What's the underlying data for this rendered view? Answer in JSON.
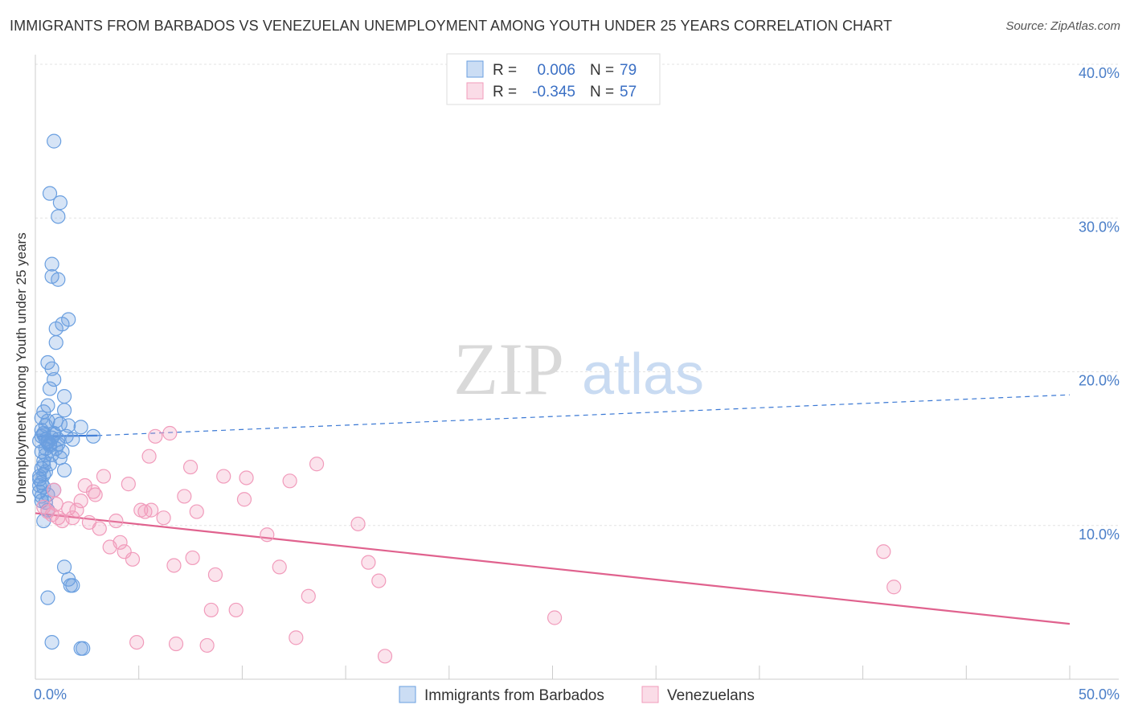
{
  "title": "IMMIGRANTS FROM BARBADOS VS VENEZUELAN UNEMPLOYMENT AMONG YOUTH UNDER 25 YEARS CORRELATION CHART",
  "source": "Source: ZipAtlas.com",
  "watermark": {
    "zip": "ZIP",
    "atlas": "atlas"
  },
  "chart_data": {
    "type": "scatter",
    "ylabel": "Unemployment Among Youth under 25 years",
    "xlim": [
      0,
      50
    ],
    "ylim": [
      0,
      40
    ],
    "x_tick_labels": [
      {
        "value": 0,
        "label": "0.0%"
      },
      {
        "value": 50,
        "label": "50.0%"
      }
    ],
    "y_ticks": [
      {
        "value": 10,
        "label": "10.0%"
      },
      {
        "value": 20,
        "label": "20.0%"
      },
      {
        "value": 30,
        "label": "30.0%"
      },
      {
        "value": 40,
        "label": "40.0%"
      }
    ],
    "legend": [
      {
        "r_label": "R =",
        "r_value": "0.006",
        "n_label": "N =",
        "n_value": "79"
      },
      {
        "r_label": "R =",
        "r_value": "-0.345",
        "n_label": "N =",
        "n_value": "57"
      }
    ],
    "series": [
      {
        "name": "Immigrants from Barbados",
        "color": "#6a9fe0",
        "line_color": "#3a78d4",
        "trend": {
          "solid": [
            [
              0.1,
              15.8
            ],
            [
              3.0,
              15.85
            ]
          ],
          "dashed": [
            [
              3.0,
              15.85
            ],
            [
              50,
              18.5
            ]
          ]
        },
        "points": [
          [
            0.2,
            15.5
          ],
          [
            0.3,
            15.8
          ],
          [
            0.4,
            16.0
          ],
          [
            0.5,
            15.6
          ],
          [
            0.6,
            15.4
          ],
          [
            0.3,
            16.2
          ],
          [
            0.4,
            15.9
          ],
          [
            0.7,
            15.3
          ],
          [
            0.8,
            15.7
          ],
          [
            0.5,
            16.5
          ],
          [
            0.3,
            17.0
          ],
          [
            0.6,
            16.8
          ],
          [
            0.4,
            17.4
          ],
          [
            0.6,
            17.8
          ],
          [
            0.7,
            18.9
          ],
          [
            0.9,
            19.5
          ],
          [
            0.8,
            20.2
          ],
          [
            0.6,
            20.6
          ],
          [
            0.3,
            14.8
          ],
          [
            0.5,
            14.6
          ],
          [
            0.4,
            14.2
          ],
          [
            0.7,
            14.0
          ],
          [
            0.3,
            13.7
          ],
          [
            0.5,
            13.5
          ],
          [
            0.2,
            13.2
          ],
          [
            0.3,
            12.8
          ],
          [
            0.4,
            12.5
          ],
          [
            0.2,
            12.2
          ],
          [
            0.3,
            11.9
          ],
          [
            0.5,
            11.5
          ],
          [
            0.6,
            11.0
          ],
          [
            0.4,
            10.3
          ],
          [
            0.2,
            13.0
          ],
          [
            0.4,
            13.3
          ],
          [
            0.9,
            12.3
          ],
          [
            1.0,
            15.0
          ],
          [
            1.1,
            15.6
          ],
          [
            1.2,
            14.4
          ],
          [
            1.3,
            14.8
          ],
          [
            1.4,
            13.6
          ],
          [
            1.5,
            15.8
          ],
          [
            1.6,
            16.5
          ],
          [
            2.2,
            16.4
          ],
          [
            2.8,
            15.8
          ],
          [
            1.4,
            17.5
          ],
          [
            1.4,
            18.4
          ],
          [
            1.0,
            21.9
          ],
          [
            1.0,
            22.8
          ],
          [
            1.3,
            23.1
          ],
          [
            1.6,
            23.4
          ],
          [
            0.8,
            26.2
          ],
          [
            1.1,
            26.0
          ],
          [
            0.8,
            27.0
          ],
          [
            1.1,
            30.1
          ],
          [
            1.2,
            31.0
          ],
          [
            0.7,
            31.6
          ],
          [
            0.9,
            35.0
          ],
          [
            0.9,
            16.0
          ],
          [
            1.8,
            15.6
          ],
          [
            1.4,
            7.3
          ],
          [
            1.6,
            6.5
          ],
          [
            1.7,
            6.1
          ],
          [
            1.8,
            6.1
          ],
          [
            0.6,
            5.3
          ],
          [
            0.8,
            2.4
          ],
          [
            2.2,
            2.0
          ],
          [
            2.3,
            2.0
          ],
          [
            0.7,
            15.2
          ],
          [
            1.2,
            16.6
          ],
          [
            1.0,
            16.8
          ],
          [
            0.5,
            15.0
          ],
          [
            0.6,
            12.0
          ],
          [
            0.3,
            11.6
          ],
          [
            0.8,
            14.6
          ],
          [
            0.6,
            15.5
          ],
          [
            0.4,
            13.9
          ],
          [
            0.2,
            12.6
          ],
          [
            1.1,
            15.3
          ],
          [
            0.9,
            15.9
          ]
        ]
      },
      {
        "name": "Venezuelans",
        "color": "#f19bbb",
        "line_color": "#e0628e",
        "trend": {
          "solid": [
            [
              0,
              10.8
            ],
            [
              50,
              3.6
            ]
          ],
          "dashed": []
        },
        "points": [
          [
            0.4,
            11.2
          ],
          [
            0.6,
            10.9
          ],
          [
            0.8,
            10.7
          ],
          [
            1.0,
            11.4
          ],
          [
            1.3,
            10.3
          ],
          [
            1.6,
            11.1
          ],
          [
            1.8,
            10.5
          ],
          [
            2.0,
            11.0
          ],
          [
            2.2,
            11.6
          ],
          [
            2.4,
            12.6
          ],
          [
            2.6,
            10.2
          ],
          [
            2.8,
            12.2
          ],
          [
            3.1,
            9.8
          ],
          [
            3.3,
            13.2
          ],
          [
            3.6,
            8.6
          ],
          [
            3.9,
            10.3
          ],
          [
            4.1,
            8.9
          ],
          [
            4.3,
            8.3
          ],
          [
            4.5,
            12.7
          ],
          [
            4.7,
            7.8
          ],
          [
            5.1,
            11.0
          ],
          [
            5.3,
            10.9
          ],
          [
            5.5,
            14.5
          ],
          [
            5.8,
            15.8
          ],
          [
            6.2,
            10.5
          ],
          [
            6.5,
            16.0
          ],
          [
            6.7,
            7.4
          ],
          [
            7.2,
            11.9
          ],
          [
            7.5,
            13.8
          ],
          [
            7.6,
            7.9
          ],
          [
            7.8,
            10.9
          ],
          [
            8.5,
            4.5
          ],
          [
            8.7,
            6.8
          ],
          [
            9.1,
            13.2
          ],
          [
            10.1,
            11.7
          ],
          [
            10.2,
            13.1
          ],
          [
            11.2,
            9.4
          ],
          [
            11.8,
            7.3
          ],
          [
            12.3,
            12.9
          ],
          [
            13.2,
            5.4
          ],
          [
            13.6,
            14.0
          ],
          [
            15.6,
            10.1
          ],
          [
            16.1,
            7.6
          ],
          [
            16.6,
            6.4
          ],
          [
            16.9,
            1.5
          ],
          [
            25.1,
            4.0
          ],
          [
            41.0,
            8.3
          ],
          [
            41.5,
            6.0
          ],
          [
            12.6,
            2.7
          ],
          [
            9.7,
            4.5
          ],
          [
            8.3,
            2.2
          ],
          [
            6.8,
            2.3
          ],
          [
            4.9,
            2.4
          ],
          [
            5.6,
            11.0
          ],
          [
            2.9,
            12.0
          ],
          [
            1.1,
            10.5
          ],
          [
            0.9,
            12.3
          ]
        ]
      }
    ],
    "bottom_legend": [
      "Immigrants from Barbados",
      "Venezuelans"
    ]
  }
}
